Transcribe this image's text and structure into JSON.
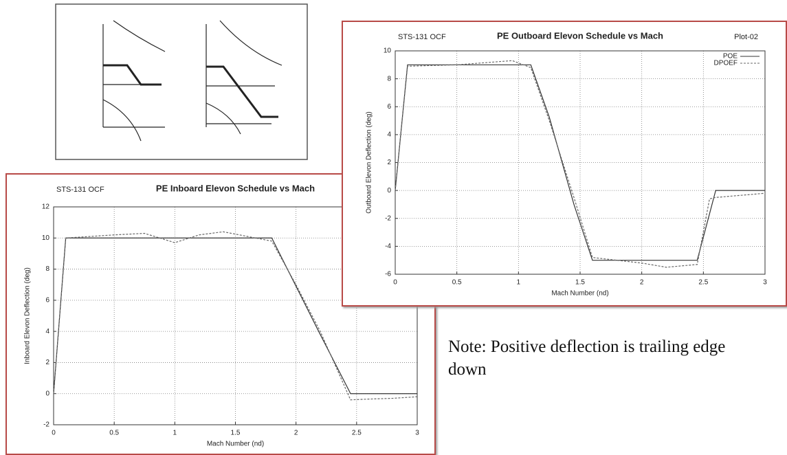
{
  "chart_data": [
    {
      "type": "line",
      "label_left": "STS-131 OCF",
      "title": "PE Inboard Elevon Schedule vs Mach",
      "xlabel": "Mach Number (nd)",
      "ylabel": "Inboard Elevon Deflection (deg)",
      "x": [
        0,
        0.1,
        0.5,
        0.75,
        1,
        1.2,
        1.4,
        1.6,
        1.8,
        2,
        2.2,
        2.45,
        2.6,
        2.8,
        3
      ],
      "series": [
        {
          "color": "#333333",
          "style": "solid",
          "values": [
            0,
            10,
            10,
            10,
            10,
            10,
            10,
            10,
            10,
            6.9,
            3.8,
            0,
            0,
            0,
            0
          ]
        },
        {
          "color": "#666666",
          "style": "dashed",
          "values": [
            0,
            10,
            10.2,
            10.3,
            9.7,
            10.2,
            10.4,
            10.1,
            9.8,
            7.0,
            4.0,
            -0.4,
            -0.35,
            -0.3,
            -0.2
          ]
        }
      ],
      "xlim": [
        0,
        3
      ],
      "xticks": [
        0,
        0.5,
        1,
        1.5,
        2,
        2.5,
        3
      ],
      "ylim": [
        -2,
        12
      ],
      "yticks": [
        -2,
        0,
        2,
        4,
        6,
        8,
        10,
        12
      ],
      "grid": true
    },
    {
      "type": "line",
      "label_left": "STS-131 OCF",
      "title": "PE Outboard Elevon Schedule vs Mach",
      "label_right": "Plot-02",
      "xlabel": "Mach Number (nd)",
      "ylabel": "Outboard Elevon Deflection (deg)",
      "x": [
        0,
        0.1,
        0.5,
        0.95,
        1.1,
        1.25,
        1.45,
        1.6,
        2,
        2.2,
        2.45,
        2.55,
        2.6,
        3
      ],
      "series": [
        {
          "name": "POE",
          "color": "#333333",
          "style": "solid",
          "values": [
            0,
            9,
            9,
            9,
            9,
            5.25,
            -1,
            -5,
            -5,
            -5,
            -5,
            -1.67,
            0,
            0
          ]
        },
        {
          "name": "DPOEF",
          "color": "#666666",
          "style": "dashed",
          "values": [
            0,
            8.9,
            9,
            9.3,
            8.8,
            5,
            -0.5,
            -4.8,
            -5.2,
            -5.5,
            -5.3,
            -0.6,
            -0.5,
            -0.2
          ]
        }
      ],
      "xlim": [
        0,
        3
      ],
      "xticks": [
        0,
        0.5,
        1,
        1.5,
        2,
        2.5,
        3
      ],
      "ylim": [
        -6,
        10
      ],
      "yticks": [
        -6,
        -4,
        -2,
        0,
        2,
        4,
        6,
        8,
        10
      ],
      "grid": true,
      "legend": "top-right"
    }
  ],
  "note": "Note:  Positive deflection is trailing edge down"
}
